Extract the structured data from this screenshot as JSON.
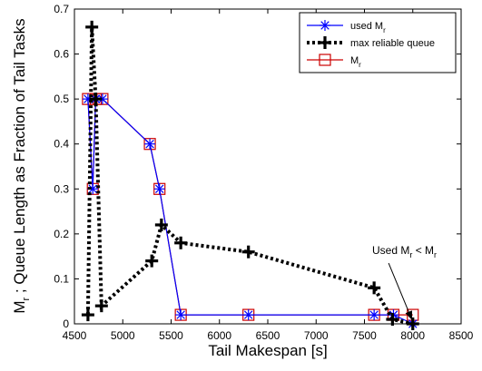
{
  "chart_data": {
    "type": "line",
    "title": "",
    "xlabel": "Tail Makespan [s]",
    "ylabel": {
      "parts": [
        "M",
        "r",
        " ; Queue Length as Fraction of Tail Tasks"
      ]
    },
    "xlim": [
      4500,
      8500
    ],
    "ylim": [
      0,
      0.7
    ],
    "xticks": [
      4500,
      5000,
      5500,
      6000,
      6500,
      7000,
      7500,
      8000,
      8500
    ],
    "yticks": [
      0,
      0.1,
      0.2,
      0.3,
      0.4,
      0.5,
      0.6,
      0.7
    ],
    "grid": false,
    "legend_position": "top-right",
    "series": [
      {
        "key": "mr",
        "name": [
          "M",
          "r"
        ],
        "color": "#cc0000",
        "marker": "square",
        "line": "solid",
        "x": [
          4640,
          4690,
          4720,
          4790,
          5280,
          5380,
          5600,
          6300,
          7600,
          7800,
          8000
        ],
        "y": [
          0.5,
          0.3,
          0.5,
          0.5,
          0.4,
          0.3,
          0.02,
          0.02,
          0.02,
          0.02,
          0.02
        ]
      },
      {
        "key": "used",
        "name": [
          "used M",
          "r"
        ],
        "color": "#0000ff",
        "marker": "asterisk",
        "line": "solid",
        "x": [
          4640,
          4690,
          4720,
          4790,
          5280,
          5380,
          5600,
          6300,
          7600,
          7800,
          8000
        ],
        "y": [
          0.5,
          0.3,
          0.5,
          0.5,
          0.4,
          0.3,
          0.02,
          0.02,
          0.02,
          0.02,
          0.0
        ]
      },
      {
        "key": "mrq",
        "name": [
          "max reliable queue"
        ],
        "color": "#000000",
        "marker": "plus",
        "line": "dotted",
        "x": [
          4640,
          4680,
          4720,
          4780,
          5300,
          5400,
          5600,
          6300,
          7600,
          7790,
          8000
        ],
        "y": [
          0.02,
          0.66,
          0.5,
          0.04,
          0.14,
          0.22,
          0.18,
          0.16,
          0.08,
          0.01,
          0.0
        ]
      }
    ],
    "annotations": [
      {
        "text_parts": [
          "Used M",
          "r",
          " < M",
          "r"
        ],
        "text_anchor_data": [
          7580,
          0.155
        ],
        "arrow_from": [
          7750,
          0.135
        ],
        "arrow_to": [
          7990,
          0.01
        ]
      }
    ]
  }
}
